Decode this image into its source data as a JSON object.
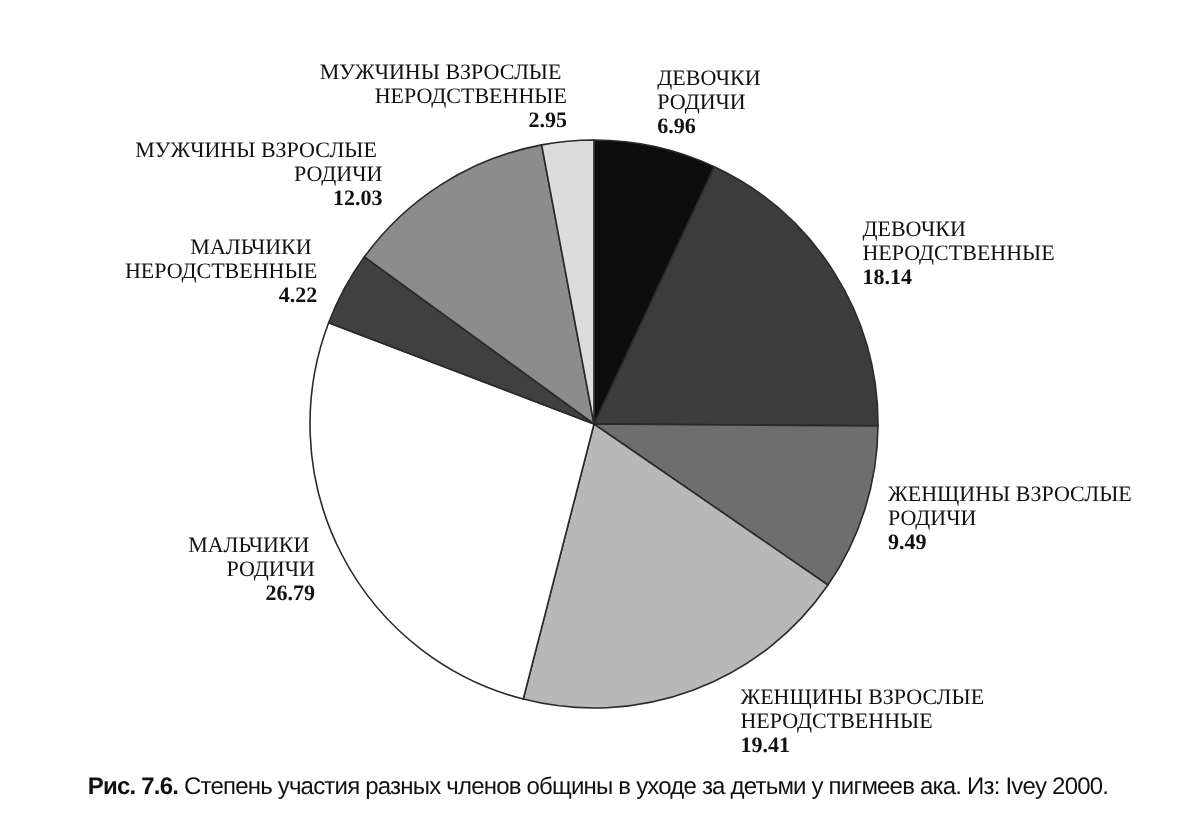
{
  "chart_data": {
    "type": "pie",
    "categories": [
      "ДЕВОЧКИ РОДИЧИ",
      "ДЕВОЧКИ НЕРОДСТВЕННЫЕ",
      "ЖЕНЩИНЫ ВЗРОСЛЫЕ РОДИЧИ",
      "ЖЕНЩИНЫ ВЗРОСЛЫЕ НЕРОДСТВЕННЫЕ",
      "МАЛЬЧИКИ РОДИЧИ",
      "МАЛЬЧИКИ НЕРОДСТВЕННЫЕ",
      "МУЖЧИНЫ ВЗРОСЛЫЕ РОДИЧИ",
      "МУЖЧИНЫ ВЗРОСЛЫЕ НЕРОДСТВЕННЫЕ"
    ],
    "values": [
      6.96,
      18.14,
      9.49,
      19.41,
      26.79,
      4.22,
      12.03,
      2.95
    ],
    "colors": [
      "#0d0d0d",
      "#3c3c3c",
      "#6e6e6e",
      "#b8b8b8",
      "#ffffff",
      "#404040",
      "#8c8c8c",
      "#dcdcdc"
    ],
    "data_labels": true,
    "annotations": [
      "Рис. 7.6.",
      "Степень участия разных членов общины в уходе за детьми у пигмеев ака. Из: Ivey 2000."
    ]
  }
}
